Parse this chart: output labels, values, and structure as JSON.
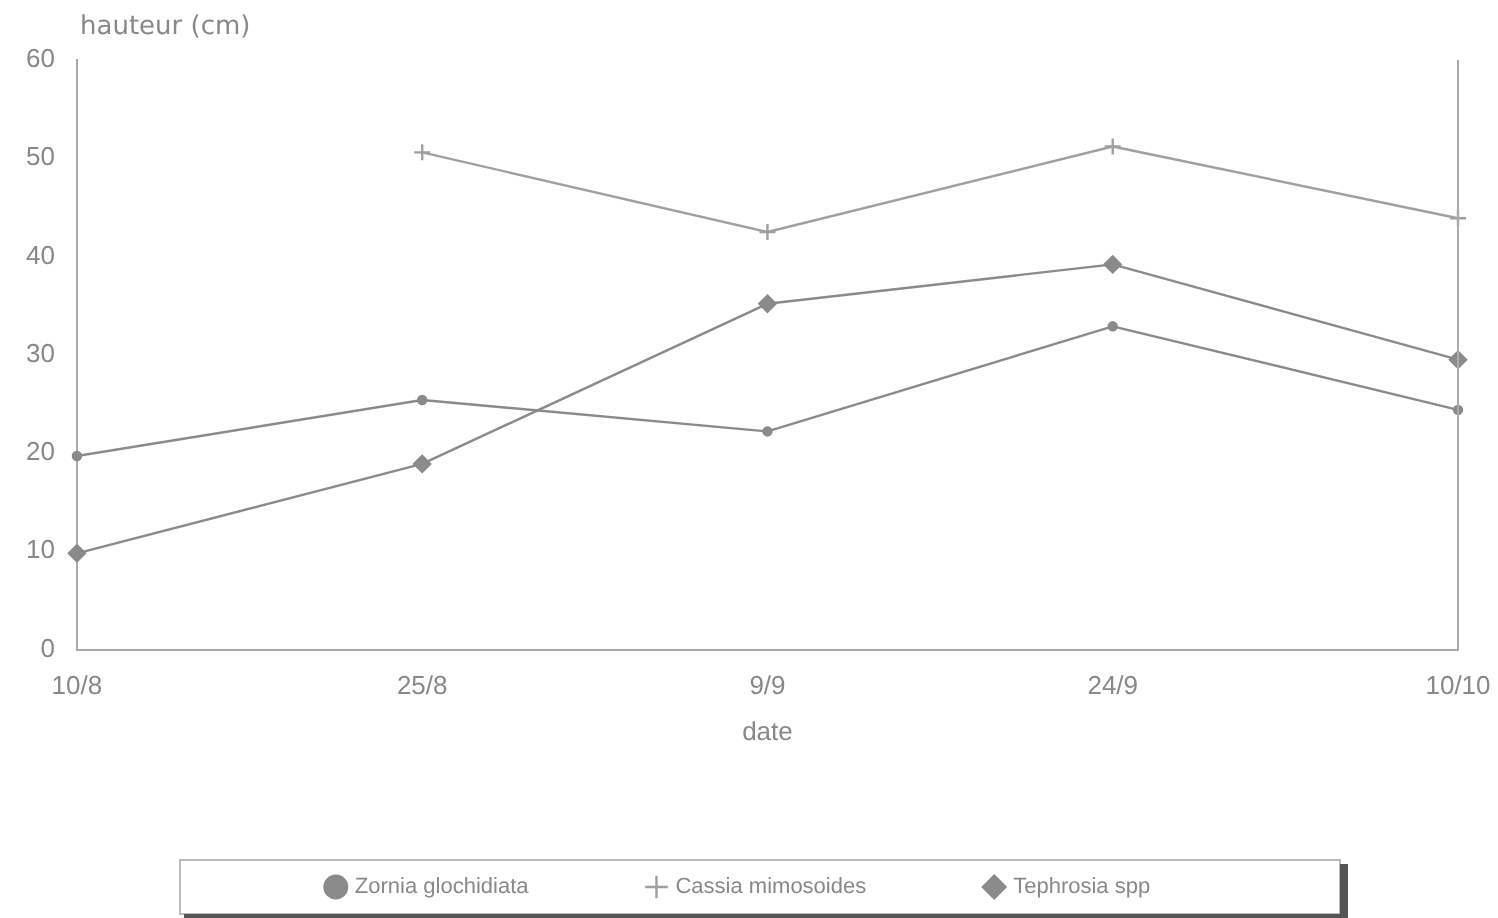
{
  "chart_data": {
    "type": "line",
    "xlabel": "date",
    "ylabel": "hauteur (cm)",
    "categories": [
      "10/8",
      "25/8",
      "9/9",
      "24/9",
      "10/10"
    ],
    "series": [
      {
        "name": "Zornia glochidiata",
        "color": "#8a8a8a",
        "marker": "circle",
        "values": [
          19.7,
          25.4,
          22.2,
          32.9,
          24.4
        ]
      },
      {
        "name": "Cassia mimosoides",
        "color": "#a0a0a0",
        "marker": "cross",
        "values": [
          null,
          50.6,
          42.5,
          51.2,
          43.9
        ]
      },
      {
        "name": "Tephrosia spp",
        "color": "#8a8a8a",
        "marker": "diamond",
        "values": [
          9.8,
          18.9,
          35.2,
          39.2,
          29.5
        ]
      }
    ],
    "ylim": [
      0,
      60
    ],
    "yticks": [
      0,
      10,
      20,
      30,
      40,
      50,
      60
    ],
    "grid": false,
    "legend": "bottom",
    "line_style": "solid"
  }
}
